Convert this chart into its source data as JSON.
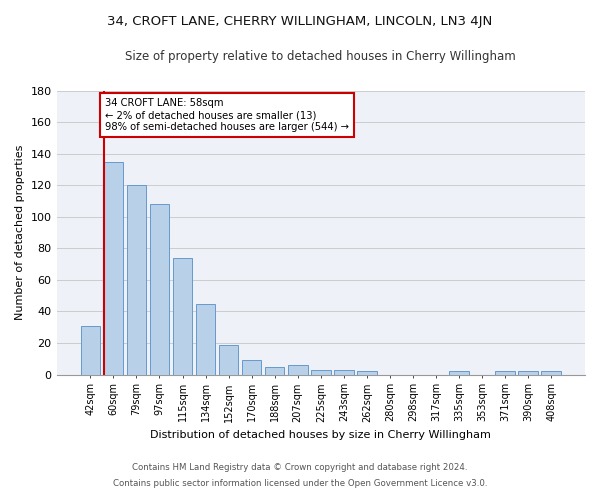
{
  "title": "34, CROFT LANE, CHERRY WILLINGHAM, LINCOLN, LN3 4JN",
  "subtitle": "Size of property relative to detached houses in Cherry Willingham",
  "xlabel": "Distribution of detached houses by size in Cherry Willingham",
  "ylabel": "Number of detached properties",
  "categories": [
    "42sqm",
    "60sqm",
    "79sqm",
    "97sqm",
    "115sqm",
    "134sqm",
    "152sqm",
    "170sqm",
    "188sqm",
    "207sqm",
    "225sqm",
    "243sqm",
    "262sqm",
    "280sqm",
    "298sqm",
    "317sqm",
    "335sqm",
    "353sqm",
    "371sqm",
    "390sqm",
    "408sqm"
  ],
  "values": [
    31,
    135,
    120,
    108,
    74,
    45,
    19,
    9,
    5,
    6,
    3,
    3,
    2,
    0,
    0,
    0,
    2,
    0,
    2,
    2,
    2
  ],
  "bar_color": "#b8d0e8",
  "bar_edge_color": "#6699cc",
  "vline_color": "#cc0000",
  "annotation_line1": "34 CROFT LANE: 58sqm",
  "annotation_line2": "← 2% of detached houses are smaller (13)",
  "annotation_line3": "98% of semi-detached houses are larger (544) →",
  "annotation_box_color": "#ffffff",
  "annotation_box_edge_color": "#cc0000",
  "ylim": [
    0,
    180
  ],
  "yticks": [
    0,
    20,
    40,
    60,
    80,
    100,
    120,
    140,
    160,
    180
  ],
  "background_color": "#eef2f8",
  "grid_color": "#cccccc",
  "footnote1": "Contains HM Land Registry data © Crown copyright and database right 2024.",
  "footnote2": "Contains public sector information licensed under the Open Government Licence v3.0."
}
